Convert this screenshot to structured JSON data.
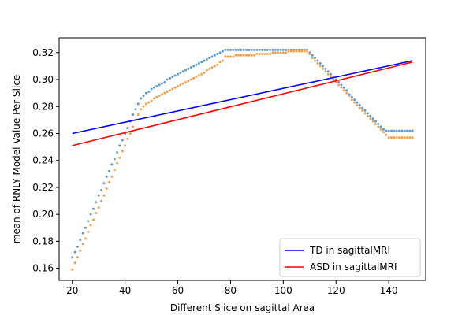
{
  "chart_data": {
    "type": "scatter",
    "xlabel": "Different Slice on sagittal Area",
    "ylabel": "mean of RNLY Model Value Per Slice",
    "xlim": [
      15,
      154
    ],
    "ylim": [
      0.151,
      0.331
    ],
    "xticks": [
      20,
      40,
      60,
      80,
      100,
      120,
      140
    ],
    "yticks": [
      0.16,
      0.18,
      0.2,
      0.22,
      0.24,
      0.26,
      0.28,
      0.3,
      0.32
    ],
    "ytick_decimals": 2,
    "grid": false,
    "legend_position": "lower-right",
    "scatter_series": [
      {
        "color": "#5b9bd5",
        "points": [
          [
            20,
            0.168
          ],
          [
            21,
            0.172
          ],
          [
            22,
            0.176
          ],
          [
            23,
            0.181
          ],
          [
            24,
            0.186
          ],
          [
            25,
            0.19
          ],
          [
            26,
            0.195
          ],
          [
            27,
            0.2
          ],
          [
            28,
            0.204
          ],
          [
            29,
            0.209
          ],
          [
            30,
            0.214
          ],
          [
            31,
            0.218
          ],
          [
            32,
            0.223
          ],
          [
            33,
            0.228
          ],
          [
            34,
            0.232
          ],
          [
            35,
            0.237
          ],
          [
            36,
            0.241
          ],
          [
            37,
            0.246
          ],
          [
            38,
            0.251
          ],
          [
            39,
            0.255
          ],
          [
            40,
            0.26
          ],
          [
            41,
            0.264
          ],
          [
            42,
            0.269
          ],
          [
            43,
            0.274
          ],
          [
            44,
            0.278
          ],
          [
            45,
            0.282
          ],
          [
            46,
            0.286
          ],
          [
            47,
            0.288
          ],
          [
            48,
            0.29
          ],
          [
            49,
            0.291
          ],
          [
            50,
            0.293
          ],
          [
            51,
            0.294
          ],
          [
            52,
            0.295
          ],
          [
            53,
            0.296
          ],
          [
            54,
            0.297
          ],
          [
            55,
            0.298
          ],
          [
            56,
            0.3
          ],
          [
            57,
            0.301
          ],
          [
            58,
            0.302
          ],
          [
            59,
            0.303
          ],
          [
            60,
            0.304
          ],
          [
            61,
            0.305
          ],
          [
            62,
            0.306
          ],
          [
            63,
            0.307
          ],
          [
            64,
            0.308
          ],
          [
            65,
            0.309
          ],
          [
            66,
            0.31
          ],
          [
            67,
            0.311
          ],
          [
            68,
            0.312
          ],
          [
            69,
            0.313
          ],
          [
            70,
            0.314
          ],
          [
            71,
            0.315
          ],
          [
            72,
            0.316
          ],
          [
            73,
            0.317
          ],
          [
            74,
            0.318
          ],
          [
            75,
            0.319
          ],
          [
            76,
            0.32
          ],
          [
            77,
            0.321
          ],
          [
            78,
            0.322
          ],
          [
            79,
            0.322
          ],
          [
            80,
            0.322
          ],
          [
            81,
            0.322
          ],
          [
            82,
            0.322
          ],
          [
            83,
            0.322
          ],
          [
            84,
            0.322
          ],
          [
            85,
            0.322
          ],
          [
            86,
            0.322
          ],
          [
            87,
            0.322
          ],
          [
            88,
            0.322
          ],
          [
            89,
            0.322
          ],
          [
            90,
            0.322
          ],
          [
            91,
            0.322
          ],
          [
            92,
            0.322
          ],
          [
            93,
            0.322
          ],
          [
            94,
            0.322
          ],
          [
            95,
            0.322
          ],
          [
            96,
            0.322
          ],
          [
            97,
            0.322
          ],
          [
            98,
            0.322
          ],
          [
            99,
            0.322
          ],
          [
            100,
            0.322
          ],
          [
            101,
            0.322
          ],
          [
            102,
            0.322
          ],
          [
            103,
            0.322
          ],
          [
            104,
            0.322
          ],
          [
            105,
            0.322
          ],
          [
            106,
            0.322
          ],
          [
            107,
            0.322
          ],
          [
            108,
            0.322
          ],
          [
            109,
            0.322
          ],
          [
            110,
            0.32
          ],
          [
            111,
            0.318
          ],
          [
            112,
            0.316
          ],
          [
            113,
            0.314
          ],
          [
            114,
            0.312
          ],
          [
            115,
            0.31
          ],
          [
            116,
            0.308
          ],
          [
            117,
            0.306
          ],
          [
            118,
            0.304
          ],
          [
            119,
            0.302
          ],
          [
            120,
            0.3
          ],
          [
            121,
            0.298
          ],
          [
            122,
            0.296
          ],
          [
            123,
            0.294
          ],
          [
            124,
            0.292
          ],
          [
            125,
            0.289
          ],
          [
            126,
            0.287
          ],
          [
            127,
            0.285
          ],
          [
            128,
            0.283
          ],
          [
            129,
            0.281
          ],
          [
            130,
            0.279
          ],
          [
            131,
            0.277
          ],
          [
            132,
            0.275
          ],
          [
            133,
            0.273
          ],
          [
            134,
            0.271
          ],
          [
            135,
            0.269
          ],
          [
            136,
            0.267
          ],
          [
            137,
            0.265
          ],
          [
            138,
            0.263
          ],
          [
            139,
            0.262
          ],
          [
            140,
            0.262
          ],
          [
            141,
            0.262
          ],
          [
            142,
            0.262
          ],
          [
            143,
            0.262
          ],
          [
            144,
            0.262
          ],
          [
            145,
            0.262
          ],
          [
            146,
            0.262
          ],
          [
            147,
            0.262
          ],
          [
            148,
            0.262
          ],
          [
            149,
            0.262
          ]
        ]
      },
      {
        "color": "#f5a04a",
        "points": [
          [
            20,
            0.159
          ],
          [
            21,
            0.164
          ],
          [
            22,
            0.168
          ],
          [
            23,
            0.173
          ],
          [
            24,
            0.178
          ],
          [
            25,
            0.182
          ],
          [
            26,
            0.187
          ],
          [
            27,
            0.192
          ],
          [
            28,
            0.196
          ],
          [
            29,
            0.201
          ],
          [
            30,
            0.205
          ],
          [
            31,
            0.21
          ],
          [
            32,
            0.214
          ],
          [
            33,
            0.219
          ],
          [
            34,
            0.224
          ],
          [
            35,
            0.228
          ],
          [
            36,
            0.233
          ],
          [
            37,
            0.238
          ],
          [
            38,
            0.242
          ],
          [
            39,
            0.247
          ],
          [
            40,
            0.251
          ],
          [
            41,
            0.256
          ],
          [
            42,
            0.26
          ],
          [
            43,
            0.265
          ],
          [
            44,
            0.27
          ],
          [
            45,
            0.274
          ],
          [
            46,
            0.278
          ],
          [
            47,
            0.28
          ],
          [
            48,
            0.282
          ],
          [
            49,
            0.283
          ],
          [
            50,
            0.284
          ],
          [
            51,
            0.286
          ],
          [
            52,
            0.287
          ],
          [
            53,
            0.288
          ],
          [
            54,
            0.289
          ],
          [
            55,
            0.29
          ],
          [
            56,
            0.291
          ],
          [
            57,
            0.292
          ],
          [
            58,
            0.293
          ],
          [
            59,
            0.294
          ],
          [
            60,
            0.295
          ],
          [
            61,
            0.296
          ],
          [
            62,
            0.297
          ],
          [
            63,
            0.298
          ],
          [
            64,
            0.299
          ],
          [
            65,
            0.3
          ],
          [
            66,
            0.301
          ],
          [
            67,
            0.302
          ],
          [
            68,
            0.303
          ],
          [
            69,
            0.304
          ],
          [
            70,
            0.305
          ],
          [
            71,
            0.307
          ],
          [
            72,
            0.308
          ],
          [
            73,
            0.309
          ],
          [
            74,
            0.31
          ],
          [
            75,
            0.311
          ],
          [
            76,
            0.313
          ],
          [
            77,
            0.314
          ],
          [
            78,
            0.317
          ],
          [
            79,
            0.317
          ],
          [
            80,
            0.317
          ],
          [
            81,
            0.317
          ],
          [
            82,
            0.318
          ],
          [
            83,
            0.318
          ],
          [
            84,
            0.318
          ],
          [
            85,
            0.318
          ],
          [
            86,
            0.318
          ],
          [
            87,
            0.318
          ],
          [
            88,
            0.318
          ],
          [
            89,
            0.318
          ],
          [
            90,
            0.319
          ],
          [
            91,
            0.319
          ],
          [
            92,
            0.319
          ],
          [
            93,
            0.319
          ],
          [
            94,
            0.319
          ],
          [
            95,
            0.319
          ],
          [
            96,
            0.32
          ],
          [
            97,
            0.32
          ],
          [
            98,
            0.32
          ],
          [
            99,
            0.32
          ],
          [
            100,
            0.32
          ],
          [
            101,
            0.32
          ],
          [
            102,
            0.321
          ],
          [
            103,
            0.321
          ],
          [
            104,
            0.321
          ],
          [
            105,
            0.321
          ],
          [
            106,
            0.321
          ],
          [
            107,
            0.321
          ],
          [
            108,
            0.321
          ],
          [
            109,
            0.321
          ],
          [
            110,
            0.319
          ],
          [
            111,
            0.316
          ],
          [
            112,
            0.314
          ],
          [
            113,
            0.312
          ],
          [
            114,
            0.31
          ],
          [
            115,
            0.308
          ],
          [
            116,
            0.306
          ],
          [
            117,
            0.304
          ],
          [
            118,
            0.302
          ],
          [
            119,
            0.3
          ],
          [
            120,
            0.298
          ],
          [
            121,
            0.296
          ],
          [
            122,
            0.294
          ],
          [
            123,
            0.292
          ],
          [
            124,
            0.29
          ],
          [
            125,
            0.288
          ],
          [
            126,
            0.285
          ],
          [
            127,
            0.283
          ],
          [
            128,
            0.281
          ],
          [
            129,
            0.279
          ],
          [
            130,
            0.277
          ],
          [
            131,
            0.275
          ],
          [
            132,
            0.273
          ],
          [
            133,
            0.271
          ],
          [
            134,
            0.269
          ],
          [
            135,
            0.267
          ],
          [
            136,
            0.265
          ],
          [
            137,
            0.263
          ],
          [
            138,
            0.261
          ],
          [
            139,
            0.259
          ],
          [
            140,
            0.257
          ],
          [
            141,
            0.257
          ],
          [
            142,
            0.257
          ],
          [
            143,
            0.257
          ],
          [
            144,
            0.257
          ],
          [
            145,
            0.257
          ],
          [
            146,
            0.257
          ],
          [
            147,
            0.257
          ],
          [
            148,
            0.257
          ],
          [
            149,
            0.257
          ]
        ]
      }
    ],
    "series": [
      {
        "name": "TD in sagittalMRI",
        "color": "#0000ff",
        "type": "line",
        "x": [
          20,
          149
        ],
        "y": [
          0.26,
          0.314
        ]
      },
      {
        "name": "ASD in sagittalMRI",
        "color": "#ff0000",
        "type": "line",
        "x": [
          20,
          149
        ],
        "y": [
          0.251,
          0.313
        ]
      }
    ]
  }
}
